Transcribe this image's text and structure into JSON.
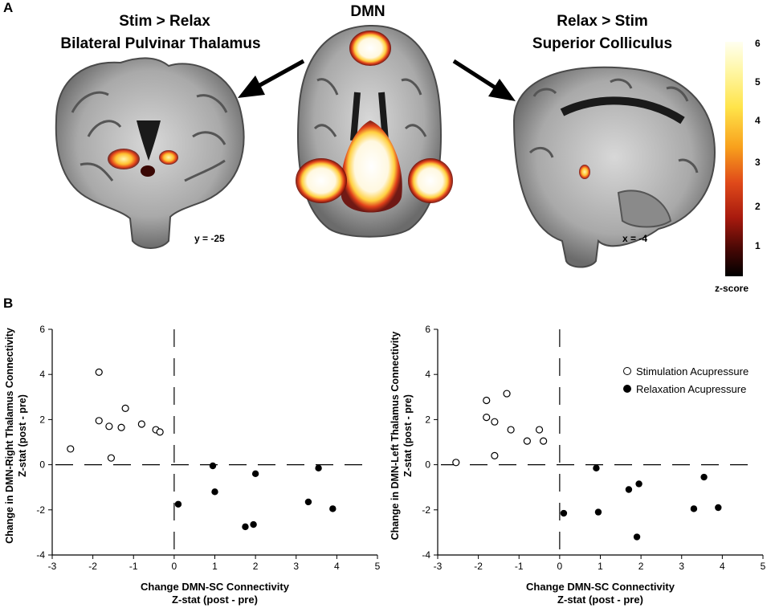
{
  "panel_a": {
    "letter": "A",
    "dmn_title": "DMN",
    "left_title_1": "Stim > Relax",
    "left_title_2": "Bilateral Pulvinar Thalamus",
    "right_title_1": "Relax > Stim",
    "right_title_2": "Superior Colliculus",
    "left_slice_label": "y = -25",
    "right_slice_label": "x = -4",
    "colorbar": {
      "ticks": [
        "6",
        "5",
        "4",
        "3",
        "2",
        "1"
      ],
      "label": "z-score",
      "colors": [
        "#fffff0",
        "#ffe44a",
        "#f89a1c",
        "#d8321a",
        "#7a0d08",
        "#000000"
      ]
    }
  },
  "panel_b": {
    "letter": "B",
    "legend": {
      "stim": "Stimulation Acupressure",
      "relax": "Relaxation Acupressure"
    }
  },
  "chart_data": [
    {
      "type": "scatter",
      "xlabel": "Change DMN-SC Connectivity\nZ-stat (post - pre)",
      "ylabel": "Change in DMN-Right Thalamus Connectivity\nZ-stat (post - pre)",
      "xlim": [
        -3,
        5
      ],
      "ylim": [
        -4,
        6
      ],
      "xticks": [
        "-3",
        "-2",
        "-1",
        "0",
        "1",
        "2",
        "3",
        "4",
        "5"
      ],
      "yticks": [
        "-4",
        "-2",
        "0",
        "2",
        "4",
        "6"
      ],
      "series": [
        {
          "name": "Stimulation Acupressure",
          "marker": "open",
          "points": [
            [
              -2.55,
              0.7
            ],
            [
              -1.85,
              4.1
            ],
            [
              -1.85,
              1.95
            ],
            [
              -1.6,
              1.7
            ],
            [
              -1.55,
              0.3
            ],
            [
              -1.3,
              1.65
            ],
            [
              -1.2,
              2.5
            ],
            [
              -0.8,
              1.8
            ],
            [
              -0.45,
              1.55
            ],
            [
              -0.35,
              1.45
            ]
          ]
        },
        {
          "name": "Relaxation Acupressure",
          "marker": "filled",
          "points": [
            [
              0.1,
              -1.75
            ],
            [
              0.95,
              -0.05
            ],
            [
              1.0,
              -1.2
            ],
            [
              1.75,
              -2.75
            ],
            [
              1.95,
              -2.65
            ],
            [
              2.0,
              -0.4
            ],
            [
              3.3,
              -1.65
            ],
            [
              3.55,
              -0.15
            ],
            [
              3.9,
              -1.95
            ]
          ]
        }
      ]
    },
    {
      "type": "scatter",
      "xlabel": "Change DMN-SC Connectivity\nZ-stat (post - pre)",
      "ylabel": "Change in DMN-Left Thalamus Connectivity\nZ-stat (post - pre)",
      "xlim": [
        -3,
        5
      ],
      "ylim": [
        -4,
        6
      ],
      "xticks": [
        "-3",
        "-2",
        "-1",
        "0",
        "1",
        "2",
        "3",
        "4",
        "5"
      ],
      "yticks": [
        "-4",
        "-2",
        "0",
        "2",
        "4",
        "6"
      ],
      "series": [
        {
          "name": "Stimulation Acupressure",
          "marker": "open",
          "points": [
            [
              -2.55,
              0.1
            ],
            [
              -1.8,
              2.85
            ],
            [
              -1.8,
              2.1
            ],
            [
              -1.6,
              1.9
            ],
            [
              -1.6,
              0.4
            ],
            [
              -1.3,
              3.15
            ],
            [
              -1.2,
              1.55
            ],
            [
              -0.8,
              1.05
            ],
            [
              -0.5,
              1.55
            ],
            [
              -0.4,
              1.05
            ]
          ]
        },
        {
          "name": "Relaxation Acupressure",
          "marker": "filled",
          "points": [
            [
              0.1,
              -2.15
            ],
            [
              0.9,
              -0.15
            ],
            [
              0.95,
              -2.1
            ],
            [
              1.7,
              -1.1
            ],
            [
              1.95,
              -0.85
            ],
            [
              1.9,
              -3.2
            ],
            [
              3.3,
              -1.95
            ],
            [
              3.55,
              -0.55
            ],
            [
              3.9,
              -1.9
            ]
          ]
        }
      ]
    }
  ]
}
